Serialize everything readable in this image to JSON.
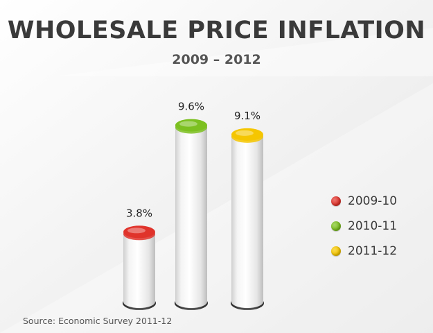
{
  "header": {
    "title": "WHOLESALE PRICE INFLATION",
    "subtitle": "2009 – 2012"
  },
  "colors": {
    "red": "#e0332b",
    "green": "#7cc020",
    "yellow": "#f5c600"
  },
  "chart_data": {
    "type": "bar",
    "title": "WHOLESALE PRICE INFLATION",
    "subtitle": "2009 – 2012",
    "categories": [
      "2009-10",
      "2010-11",
      "2011-12"
    ],
    "values": [
      3.8,
      9.6,
      9.1
    ],
    "value_labels": [
      "3.8%",
      "9.6%",
      "9.1%"
    ],
    "series_colors": [
      "#e0332b",
      "#7cc020",
      "#f5c600"
    ],
    "ylim": [
      0,
      10
    ],
    "grid": false,
    "legend_position": "right",
    "legend": [
      "2009-10",
      "2010-11",
      "2011-12"
    ]
  },
  "footer": {
    "source": "Source: Economic Survey 2011-12"
  }
}
